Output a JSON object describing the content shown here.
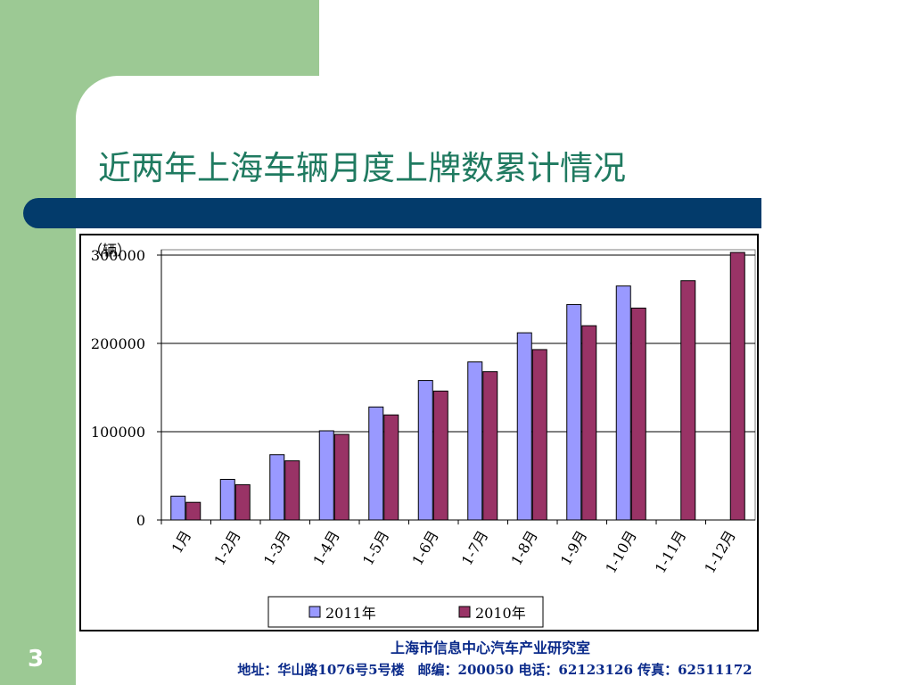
{
  "slide": {
    "title": "近两年上海车辆月度上牌数累计情况",
    "number": "3",
    "footer_org": "上海市信息中心汽车产业研究室",
    "footer_contact": "地址：华山路1076号5号楼　邮编：200050  电话：62123126  传真：62511172"
  },
  "colors": {
    "background_green": "#9cc994",
    "title_bar": "#033b6b",
    "title_text": "#1f7a60",
    "footer_text": "#0a2a8a",
    "series_2011": "#9999ff",
    "series_2010": "#993366"
  },
  "chart_data": {
    "type": "bar",
    "unit_label": "（辆）",
    "categories": [
      "1月",
      "1-2月",
      "1-3月",
      "1-4月",
      "1-5月",
      "1-6月",
      "1-7月",
      "1-8月",
      "1-9月",
      "1-10月",
      "1-11月",
      "1-12月"
    ],
    "series": [
      {
        "name": "2011年",
        "values": [
          27000,
          46000,
          74000,
          101000,
          128000,
          158000,
          179000,
          212000,
          244000,
          265000,
          null,
          null
        ]
      },
      {
        "name": "2010年",
        "values": [
          20000,
          40000,
          67000,
          97000,
          119000,
          146000,
          168000,
          193000,
          220000,
          240000,
          271000,
          303000
        ]
      }
    ],
    "yticks": [
      0,
      100000,
      200000,
      300000
    ],
    "ylim": [
      0,
      300000
    ],
    "grid": true,
    "legend": "bottom"
  }
}
